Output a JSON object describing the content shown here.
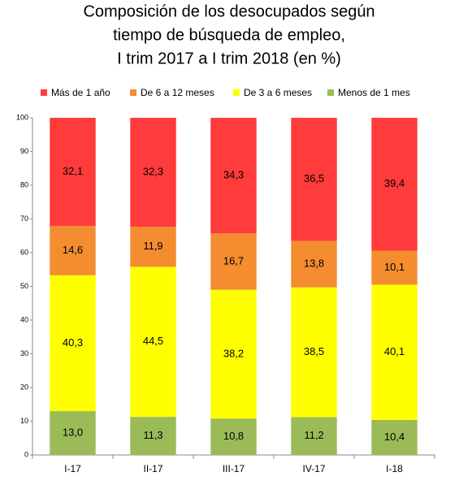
{
  "chart_data": {
    "type": "stacked_bar",
    "title": [
      "Composición de los desocupados según",
      "tiempo de búsqueda de empleo,",
      "I trim 2017 a I trim 2018 (en %)"
    ],
    "categories": [
      "I-17",
      "II-17",
      "III-17",
      "IV-17",
      "I-18"
    ],
    "series": [
      {
        "name": "Más de 1 año",
        "color": "#ff3b3b",
        "values": [
          32.1,
          32.3,
          34.3,
          36.5,
          39.4
        ],
        "value_labels": [
          "32,1",
          "32,3",
          "34,3",
          "36,5",
          "39,4"
        ]
      },
      {
        "name": "De 6 a 12 meses",
        "color": "#f38d30",
        "values": [
          14.6,
          11.9,
          16.7,
          13.8,
          10.1
        ],
        "value_labels": [
          "14,6",
          "11,9",
          "16,7",
          "13,8",
          "10,1"
        ]
      },
      {
        "name": "De 3 a 6 meses",
        "color": "#ffff00",
        "values": [
          40.3,
          44.5,
          38.2,
          38.5,
          40.1
        ],
        "value_labels": [
          "40,3",
          "44,5",
          "38,2",
          "38,5",
          "40,1"
        ]
      },
      {
        "name": "Menos de 1 mes",
        "color": "#9bbb59",
        "values": [
          13.0,
          11.3,
          10.8,
          11.2,
          10.4
        ],
        "value_labels": [
          "13,0",
          "11,3",
          "10,8",
          "11,2",
          "10,4"
        ]
      }
    ],
    "ylim": [
      0,
      100
    ],
    "yticks": [
      0,
      10,
      20,
      30,
      40,
      50,
      60,
      70,
      80,
      90,
      100
    ],
    "legend": "top"
  }
}
